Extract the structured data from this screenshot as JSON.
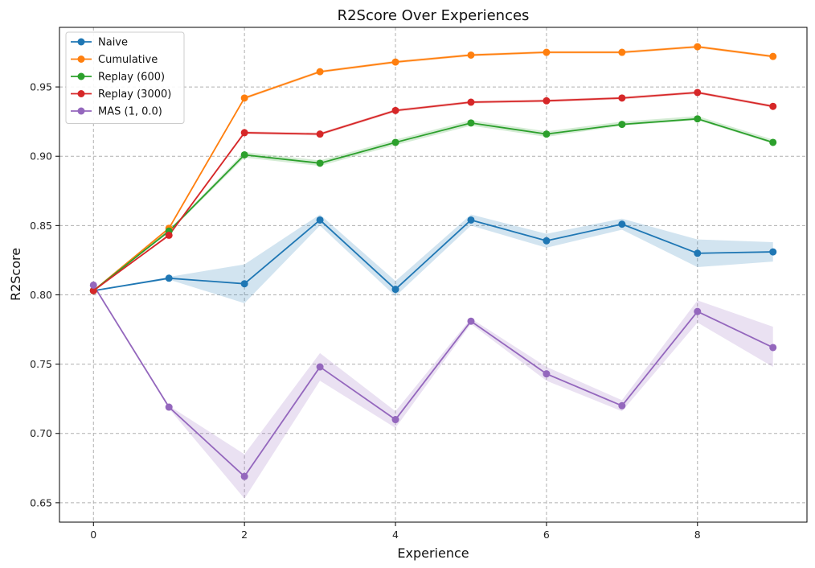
{
  "chart_data": {
    "type": "line",
    "title": "R2Score Over Experiences",
    "xlabel": "Experience",
    "ylabel": "R2Score",
    "xlim": [
      -0.45,
      9.45
    ],
    "ylim": [
      0.636,
      0.993
    ],
    "xticks": [
      0,
      2,
      4,
      6,
      8
    ],
    "yticks": [
      0.65,
      0.7,
      0.75,
      0.8,
      0.85,
      0.9,
      0.95
    ],
    "grid": true,
    "legend_position": "top-left",
    "x": [
      0,
      1,
      2,
      3,
      4,
      5,
      6,
      7,
      8,
      9
    ],
    "series": [
      {
        "name": "Naive",
        "color": "#1f77b4",
        "values": [
          0.803,
          0.812,
          0.808,
          0.854,
          0.804,
          0.854,
          0.839,
          0.851,
          0.83,
          0.831
        ],
        "lower": [
          0.803,
          0.811,
          0.794,
          0.85,
          0.799,
          0.85,
          0.834,
          0.847,
          0.82,
          0.824
        ],
        "upper": [
          0.803,
          0.813,
          0.822,
          0.858,
          0.81,
          0.858,
          0.844,
          0.855,
          0.84,
          0.838
        ]
      },
      {
        "name": "Cumulative",
        "color": "#ff7f0e",
        "values": [
          0.803,
          0.848,
          0.942,
          0.961,
          0.968,
          0.973,
          0.975,
          0.975,
          0.979,
          0.972
        ],
        "lower": [
          0.803,
          0.847,
          0.941,
          0.96,
          0.967,
          0.972,
          0.974,
          0.974,
          0.978,
          0.971
        ],
        "upper": [
          0.803,
          0.849,
          0.943,
          0.962,
          0.969,
          0.974,
          0.976,
          0.976,
          0.98,
          0.973
        ]
      },
      {
        "name": "Replay (600)",
        "color": "#2ca02c",
        "values": [
          0.803,
          0.846,
          0.901,
          0.895,
          0.91,
          0.924,
          0.916,
          0.923,
          0.927,
          0.91
        ],
        "lower": [
          0.803,
          0.845,
          0.899,
          0.893,
          0.908,
          0.922,
          0.914,
          0.922,
          0.926,
          0.909
        ],
        "upper": [
          0.803,
          0.847,
          0.903,
          0.897,
          0.912,
          0.926,
          0.918,
          0.925,
          0.929,
          0.912
        ]
      },
      {
        "name": "Replay (3000)",
        "color": "#d62728",
        "values": [
          0.803,
          0.843,
          0.917,
          0.916,
          0.933,
          0.939,
          0.94,
          0.942,
          0.946,
          0.936
        ],
        "lower": [
          0.803,
          0.842,
          0.916,
          0.915,
          0.932,
          0.938,
          0.939,
          0.941,
          0.945,
          0.935
        ],
        "upper": [
          0.803,
          0.844,
          0.918,
          0.917,
          0.934,
          0.94,
          0.941,
          0.943,
          0.947,
          0.937
        ]
      },
      {
        "name": "MAS (1, 0.0)",
        "color": "#9467bd",
        "values": [
          0.807,
          0.719,
          0.669,
          0.748,
          0.71,
          0.781,
          0.743,
          0.72,
          0.788,
          0.762
        ],
        "lower": [
          0.807,
          0.718,
          0.653,
          0.738,
          0.704,
          0.779,
          0.738,
          0.716,
          0.78,
          0.748
        ],
        "upper": [
          0.807,
          0.72,
          0.685,
          0.758,
          0.716,
          0.783,
          0.748,
          0.724,
          0.796,
          0.777
        ]
      }
    ]
  }
}
